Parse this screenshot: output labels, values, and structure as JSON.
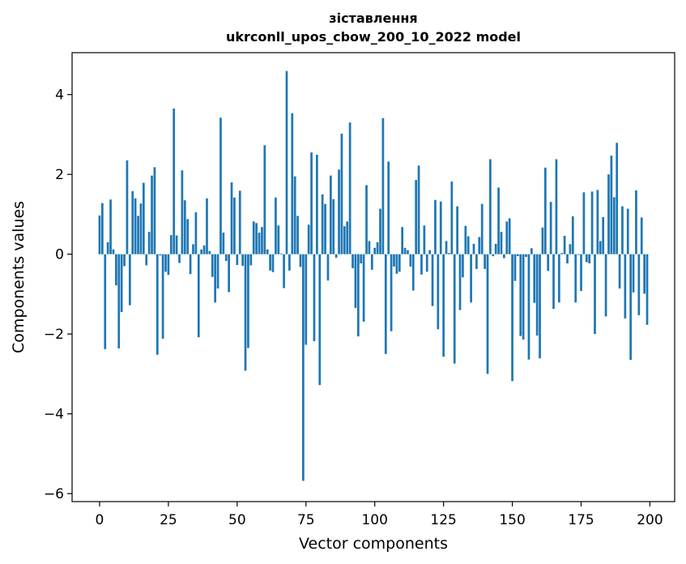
{
  "chart_data": {
    "type": "bar",
    "title_line1": "зіставлення",
    "title_line2": "ukrconll_upos_cbow_200_10_2022 model",
    "xlabel": "Vector components",
    "ylabel": "Components values",
    "xlim": [
      -10,
      209
    ],
    "ylim": [
      -6.2,
      5.05
    ],
    "xticks": [
      0,
      25,
      50,
      75,
      100,
      125,
      150,
      175,
      200
    ],
    "yticks": [
      -6,
      -4,
      -2,
      0,
      2,
      4
    ],
    "ytick_labels": [
      "−6",
      "−4",
      "−2",
      "0",
      "2",
      "4"
    ],
    "bar_color": "#1f77b4",
    "grid": false,
    "values": [
      0.97,
      1.28,
      -2.38,
      0.3,
      1.37,
      0.12,
      -0.78,
      -2.36,
      -1.45,
      -0.3,
      2.35,
      -1.28,
      1.58,
      1.4,
      0.96,
      1.27,
      1.79,
      -0.28,
      0.56,
      1.97,
      2.18,
      -2.52,
      -0.03,
      -2.12,
      -0.44,
      -0.52,
      0.48,
      3.65,
      0.47,
      -0.22,
      2.1,
      1.35,
      0.88,
      -0.5,
      0.25,
      1.05,
      -2.08,
      0.12,
      0.22,
      1.4,
      0.08,
      -0.57,
      -1.21,
      -0.86,
      3.42,
      0.54,
      -0.17,
      -0.95,
      1.8,
      1.42,
      -0.27,
      1.59,
      -0.29,
      -2.92,
      -2.35,
      -0.28,
      0.82,
      0.78,
      0.54,
      0.68,
      2.73,
      0.12,
      -0.41,
      -0.45,
      1.42,
      0.72,
      0.02,
      -0.85,
      4.59,
      -0.41,
      3.53,
      1.95,
      0.96,
      -0.32,
      -5.68,
      -2.27,
      0.74,
      2.55,
      -2.18,
      2.49,
      -3.28,
      1.5,
      1.26,
      -0.66,
      1.97,
      1.38,
      -0.09,
      2.12,
      3.02,
      0.7,
      0.82,
      3.3,
      -0.35,
      -1.35,
      -2.06,
      -0.23,
      -1.69,
      1.73,
      0.33,
      -0.39,
      0.16,
      0.3,
      1.14,
      3.41,
      -2.5,
      2.32,
      -1.93,
      -0.31,
      -0.49,
      -0.44,
      0.68,
      0.16,
      0.1,
      -0.31,
      -0.91,
      1.86,
      2.22,
      -0.51,
      0.72,
      -0.44,
      0.1,
      -1.3,
      1.36,
      -1.88,
      1.32,
      -2.57,
      0.33,
      0.03,
      1.82,
      -2.74,
      1.2,
      -1.4,
      -0.58,
      0.71,
      0.45,
      -1.21,
      0.26,
      -0.37,
      0.43,
      1.26,
      -0.37,
      -3.0,
      2.38,
      -0.05,
      0.26,
      1.67,
      0.56,
      -0.1,
      0.82,
      0.9,
      -3.18,
      -0.67,
      -0.05,
      -2.05,
      -2.14,
      -0.07,
      -2.64,
      0.15,
      -1.22,
      -2.04,
      -2.61,
      0.67,
      2.17,
      -0.42,
      1.31,
      -1.37,
      2.38,
      -1.21,
      0.03,
      0.46,
      -0.23,
      0.25,
      0.95,
      -1.21,
      -0.02,
      -0.92,
      1.55,
      -0.2,
      -0.23,
      1.57,
      -2.0,
      1.61,
      0.33,
      0.93,
      -1.56,
      2.0,
      2.47,
      1.43,
      2.79,
      -0.86,
      1.2,
      -1.61,
      1.14,
      -2.65,
      -0.96,
      1.6,
      -1.53,
      0.92,
      -0.99,
      -1.77
    ]
  }
}
